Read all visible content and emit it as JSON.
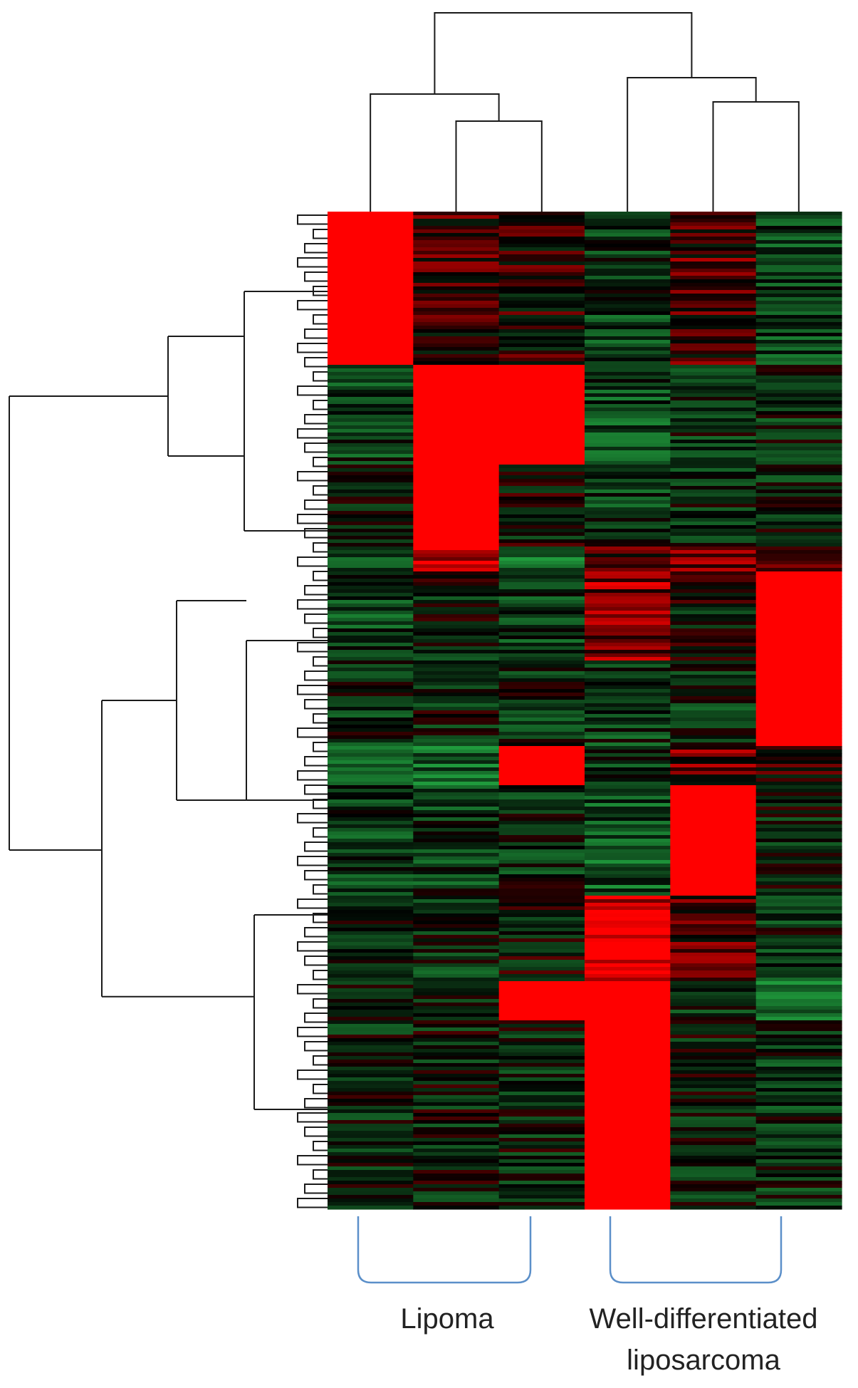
{
  "chart_data": {
    "type": "heatmap",
    "title": "",
    "xlabel": "",
    "ylabel": "",
    "legend": "none",
    "grid": false,
    "colormap": {
      "low": "#1f9a3c",
      "mid": "#000000",
      "high": "#ff0000"
    },
    "columns": 6,
    "column_clusters": [
      {
        "name": "Lipoma",
        "columns": [
          1,
          2,
          3
        ]
      },
      {
        "name": "Well-differentiated liposarcoma",
        "columns": [
          4,
          5,
          6
        ]
      }
    ],
    "group_labels": [
      {
        "lines": [
          "Lipoma"
        ]
      },
      {
        "lines": [
          "Well-differentiated",
          "liposarcoma"
        ]
      }
    ],
    "row_dendrogram": true,
    "column_dendrogram": true,
    "bracket_color": "#5b8fc9",
    "blocks": [
      {
        "rows": [
          0.0,
          0.155
        ],
        "levels": [
          2.6,
          0.2,
          0.1,
          -0.4,
          0.3,
          -0.5
        ]
      },
      {
        "rows": [
          0.155,
          0.255
        ],
        "levels": [
          -0.4,
          2.6,
          2.6,
          -0.5,
          -0.3,
          -0.3
        ]
      },
      {
        "rows": [
          0.255,
          0.335
        ],
        "levels": [
          -0.2,
          2.6,
          -0.1,
          -0.4,
          -0.3,
          -0.2
        ]
      },
      {
        "rows": [
          0.335,
          0.36
        ],
        "levels": [
          -0.4,
          0.8,
          -0.9,
          0.4,
          0.4,
          0.3
        ]
      },
      {
        "rows": [
          0.36,
          0.45
        ],
        "levels": [
          -0.5,
          -0.2,
          -0.4,
          0.6,
          -0.1,
          2.5
        ]
      },
      {
        "rows": [
          0.45,
          0.535
        ],
        "levels": [
          -0.3,
          -0.2,
          -0.3,
          -0.4,
          -0.3,
          2.6
        ]
      },
      {
        "rows": [
          0.535,
          0.575
        ],
        "levels": [
          -0.6,
          -0.8,
          2.5,
          -0.4,
          0.4,
          0.2
        ]
      },
      {
        "rows": [
          0.575,
          0.685
        ],
        "levels": [
          -0.4,
          -0.4,
          -0.3,
          -0.6,
          2.6,
          -0.2
        ]
      },
      {
        "rows": [
          0.685,
          0.77
        ],
        "levels": [
          -0.2,
          -0.3,
          -0.1,
          1.0,
          0.4,
          -0.3
        ]
      },
      {
        "rows": [
          0.77,
          0.81
        ],
        "levels": [
          -0.3,
          -0.3,
          1.8,
          1.8,
          -0.3,
          -0.8
        ]
      },
      {
        "rows": [
          0.81,
          1.0
        ],
        "levels": [
          -0.2,
          -0.2,
          -0.2,
          2.6,
          -0.2,
          -0.3
        ]
      }
    ]
  }
}
